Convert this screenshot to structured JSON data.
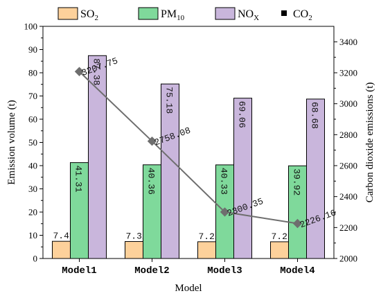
{
  "chart_data": {
    "type": "bar",
    "categories": [
      "Model1",
      "Model2",
      "Model3",
      "Model4"
    ],
    "xlabel": "Model",
    "ylabel": "Emission volume (t)",
    "y2label": "Carbon dioxide emissions (t)",
    "ylim": [
      0,
      100
    ],
    "yticks": [
      "0",
      "10",
      "20",
      "30",
      "40",
      "50",
      "60",
      "70",
      "80",
      "90",
      "100"
    ],
    "y2lim": [
      2000,
      3500
    ],
    "y2ticks": [
      "2000",
      "2200",
      "2400",
      "2600",
      "2800",
      "3000",
      "3200",
      "3400"
    ],
    "grid": false,
    "legend_position": "top",
    "series": [
      {
        "name_base": "SO",
        "name_sub": "2",
        "color": "#fdd19b",
        "values": [
          7.41,
          7.32,
          7.22,
          7.2
        ],
        "labels": [
          "7.41",
          "7.32",
          "7.22",
          "7.2"
        ]
      },
      {
        "name_base": "PM",
        "name_sub": "10",
        "color": "#7fd99b",
        "values": [
          41.31,
          40.36,
          40.33,
          39.92
        ],
        "labels": [
          "41.31",
          "40.36",
          "40.33",
          "39.92"
        ]
      },
      {
        "name_base": "NO",
        "name_sub": "X",
        "color": "#c9b6dc",
        "values": [
          87.38,
          75.18,
          69.06,
          68.68
        ],
        "labels": [
          "87.38",
          "75.18",
          "69.06",
          "68.68"
        ]
      }
    ],
    "line_series": {
      "name_base": "CO",
      "name_sub": "2",
      "axis": "right",
      "type": "line",
      "color": "#6e6e6e",
      "legend_marker_color": "#000000",
      "values": [
        3207.75,
        2758.08,
        2300.35,
        2226.16
      ],
      "labels": [
        "3207.75",
        "2758.08",
        "2300.35",
        "2226.16"
      ]
    }
  }
}
